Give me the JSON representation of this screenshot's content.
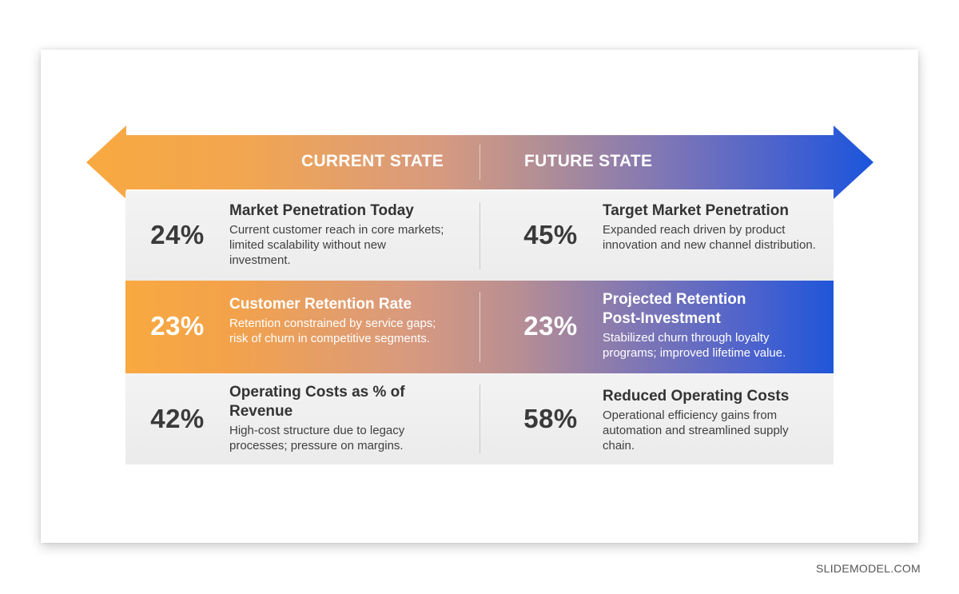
{
  "header": {
    "current_label": "CURRENT STATE",
    "future_label": "FUTURE STATE"
  },
  "colors": {
    "orange": "#f8a940",
    "blue": "#1f56d9",
    "row_gray": "#efefef",
    "text_dark": "#333333"
  },
  "rows": [
    {
      "current": {
        "value": "24%",
        "title": "Market Penetration Today",
        "description": "Current customer reach in core markets; limited scalability without new investment."
      },
      "future": {
        "value": "45%",
        "title": "Target Market Penetration",
        "description": "Expanded reach driven by product innovation and new channel distribution."
      }
    },
    {
      "current": {
        "value": "23%",
        "title": "Customer Retention Rate",
        "description": "Retention constrained by service gaps; risk of churn in competitive segments."
      },
      "future": {
        "value": "23%",
        "title": "Projected Retention Post-Investment",
        "description": "Stabilized churn through loyalty programs; improved lifetime value."
      }
    },
    {
      "current": {
        "value": "42%",
        "title": "Operating Costs as % of Revenue",
        "description": "High-cost structure due to legacy processes; pressure on margins."
      },
      "future": {
        "value": "58%",
        "title": "Reduced Operating Costs",
        "description": "Operational efficiency gains from automation and streamlined supply chain."
      }
    }
  ],
  "footer": {
    "brand": "SLIDEMODEL.COM"
  }
}
